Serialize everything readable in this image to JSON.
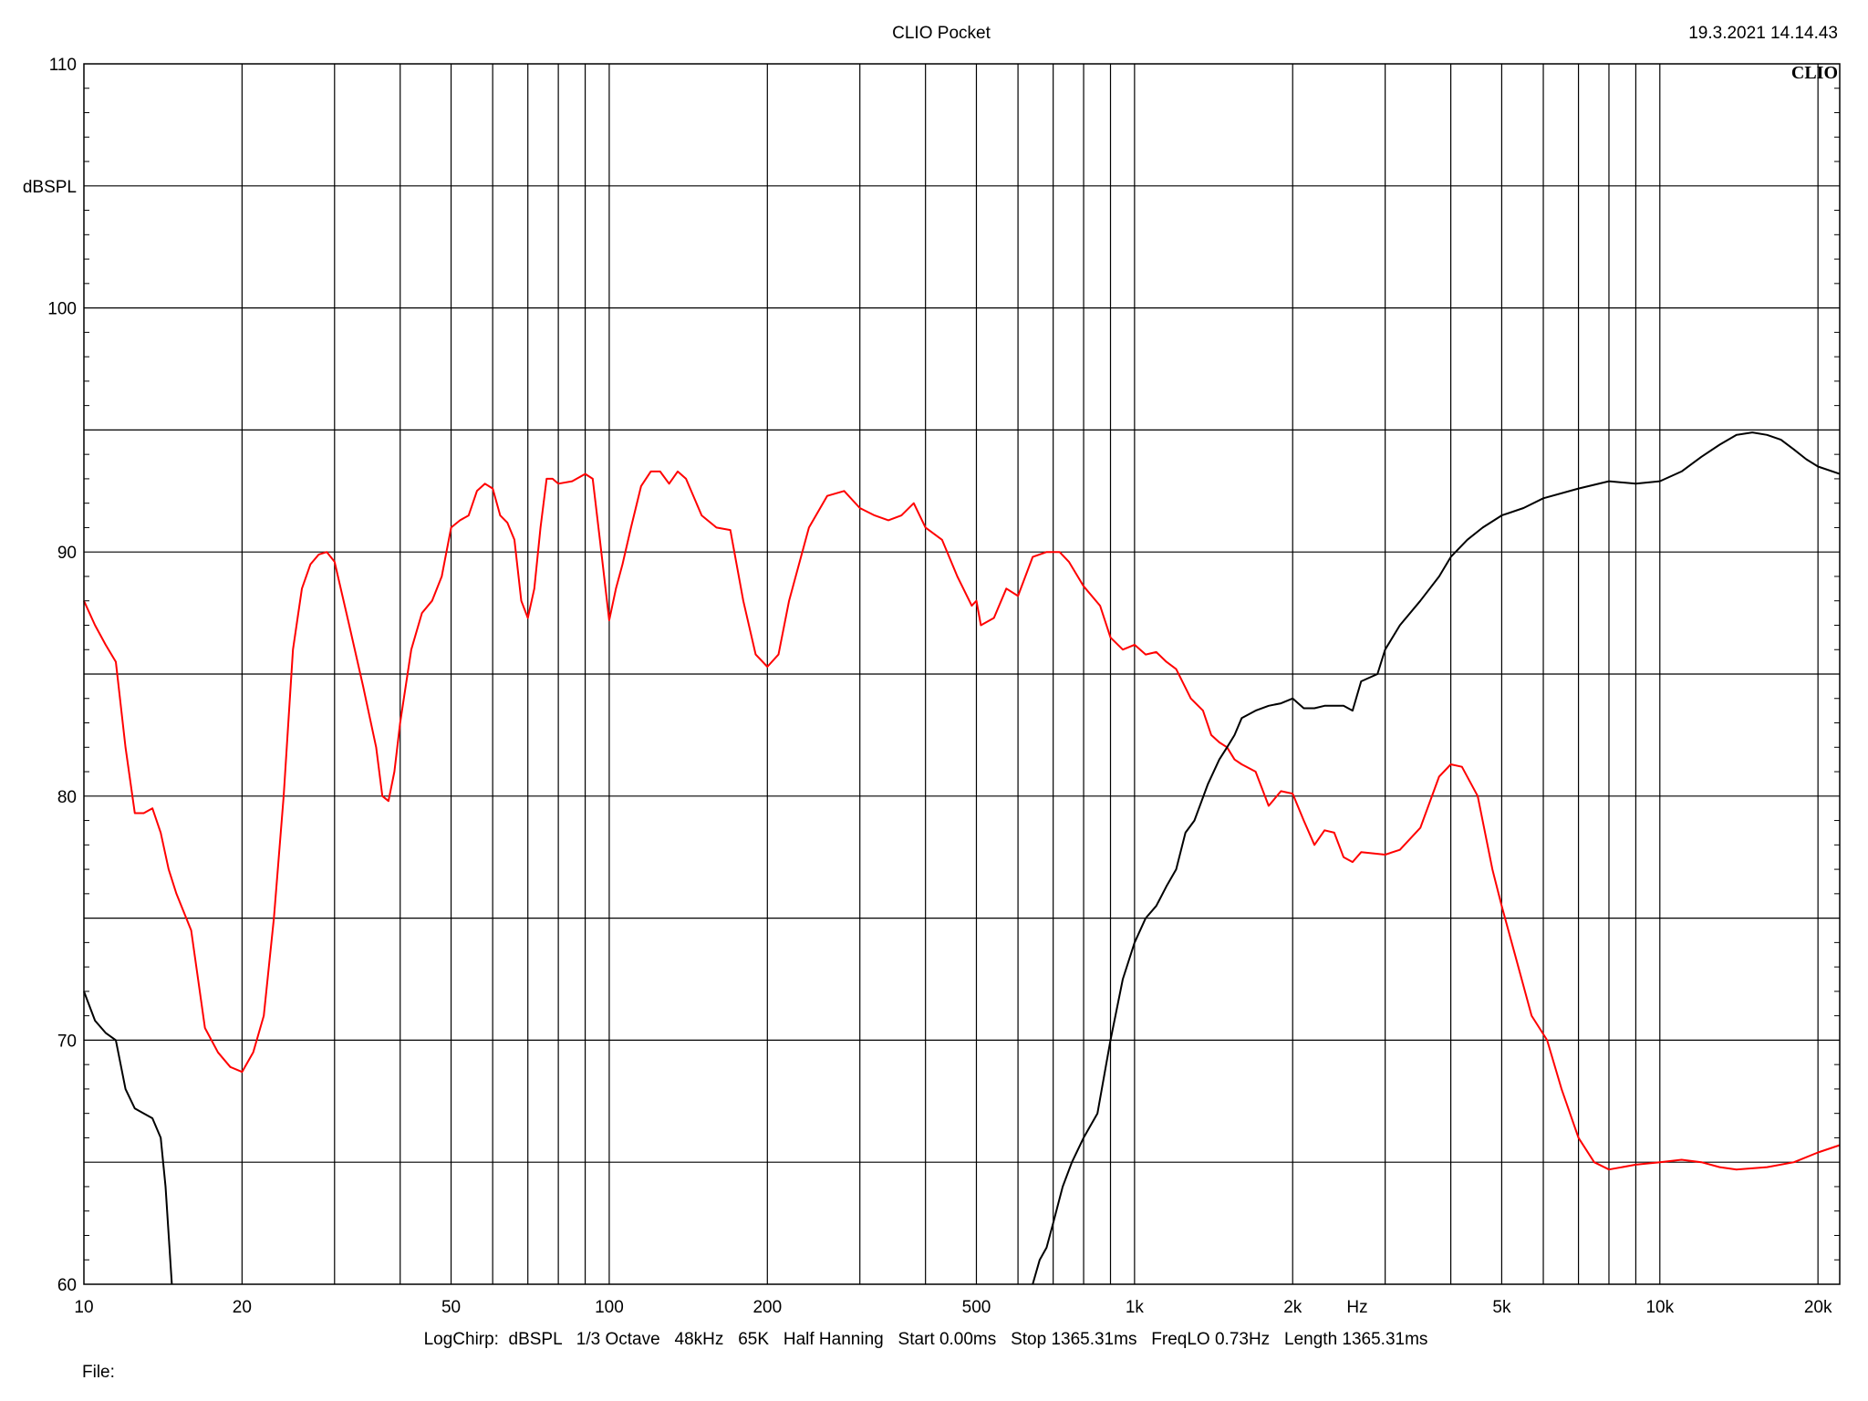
{
  "header": {
    "app_title": "CLIO Pocket",
    "timestamp": "19.3.2021 14.14.43",
    "logo_text": "CLIO"
  },
  "footer": {
    "settings_line": "LogChirp:  dBSPL   1/3 Octave   48kHz   65K   Half Hanning   Start 0.00ms   Stop 1365.31ms   FreqLO 0.73Hz   Length 1365.31ms",
    "file_label": "File:"
  },
  "chart_data": {
    "type": "line",
    "title": "CLIO Pocket",
    "ylabel": "dBSPL",
    "xlabel": "Hz",
    "x_scale": "log",
    "xlim": [
      10,
      22000
    ],
    "ylim": [
      60,
      110
    ],
    "y_ticks": [
      60,
      70,
      80,
      90,
      100,
      110
    ],
    "y_tick_labels": [
      "60",
      "70",
      "80",
      "90",
      "100",
      "110"
    ],
    "x_ticks": [
      10,
      20,
      50,
      100,
      200,
      500,
      1000,
      2000,
      5000,
      10000,
      20000
    ],
    "x_tick_labels": [
      "10",
      "20",
      "50",
      "100",
      "200",
      "500",
      "1k",
      "2k",
      "5k",
      "10k",
      "20k"
    ],
    "grid": true,
    "series": [
      {
        "color": "#ff0000",
        "points": [
          [
            10,
            88
          ],
          [
            10.5,
            87
          ],
          [
            11,
            86.2
          ],
          [
            11.5,
            85.5
          ],
          [
            12,
            82
          ],
          [
            12.5,
            79.3
          ],
          [
            13,
            79.3
          ],
          [
            13.5,
            79.5
          ],
          [
            14,
            78.5
          ],
          [
            14.5,
            77
          ],
          [
            15,
            76
          ],
          [
            16,
            74.5
          ],
          [
            17,
            70.5
          ],
          [
            18,
            69.5
          ],
          [
            19,
            68.9
          ],
          [
            20,
            68.7
          ],
          [
            21,
            69.5
          ],
          [
            22,
            71
          ],
          [
            23,
            75
          ],
          [
            24,
            80
          ],
          [
            25,
            86
          ],
          [
            26,
            88.5
          ],
          [
            27,
            89.5
          ],
          [
            28,
            89.9
          ],
          [
            29,
            90
          ],
          [
            30,
            89.6
          ],
          [
            32,
            87
          ],
          [
            34,
            84.5
          ],
          [
            36,
            82
          ],
          [
            37,
            80
          ],
          [
            38,
            79.8
          ],
          [
            39,
            81
          ],
          [
            40,
            83
          ],
          [
            42,
            86
          ],
          [
            44,
            87.5
          ],
          [
            46,
            88
          ],
          [
            48,
            89
          ],
          [
            50,
            91
          ],
          [
            52,
            91.3
          ],
          [
            54,
            91.5
          ],
          [
            56,
            92.5
          ],
          [
            58,
            92.8
          ],
          [
            60,
            92.6
          ],
          [
            62,
            91.5
          ],
          [
            64,
            91.2
          ],
          [
            66,
            90.5
          ],
          [
            68,
            88
          ],
          [
            70,
            87.3
          ],
          [
            72,
            88.5
          ],
          [
            74,
            91
          ],
          [
            76,
            93
          ],
          [
            78,
            93
          ],
          [
            80,
            92.8
          ],
          [
            85,
            92.9
          ],
          [
            90,
            93.2
          ],
          [
            93,
            93
          ],
          [
            96,
            90.5
          ],
          [
            100,
            87.2
          ],
          [
            103,
            88.5
          ],
          [
            106,
            89.5
          ],
          [
            110,
            91
          ],
          [
            115,
            92.7
          ],
          [
            120,
            93.3
          ],
          [
            125,
            93.3
          ],
          [
            130,
            92.8
          ],
          [
            135,
            93.3
          ],
          [
            140,
            93
          ],
          [
            150,
            91.5
          ],
          [
            160,
            91
          ],
          [
            170,
            90.9
          ],
          [
            180,
            88
          ],
          [
            190,
            85.8
          ],
          [
            200,
            85.3
          ],
          [
            210,
            85.8
          ],
          [
            220,
            88
          ],
          [
            240,
            91
          ],
          [
            260,
            92.3
          ],
          [
            280,
            92.5
          ],
          [
            300,
            91.8
          ],
          [
            320,
            91.5
          ],
          [
            340,
            91.3
          ],
          [
            360,
            91.5
          ],
          [
            380,
            92
          ],
          [
            400,
            91
          ],
          [
            430,
            90.5
          ],
          [
            460,
            89
          ],
          [
            490,
            87.8
          ],
          [
            500,
            88
          ],
          [
            510,
            87
          ],
          [
            540,
            87.3
          ],
          [
            570,
            88.5
          ],
          [
            600,
            88.2
          ],
          [
            640,
            89.8
          ],
          [
            680,
            90
          ],
          [
            720,
            90
          ],
          [
            750,
            89.6
          ],
          [
            800,
            88.6
          ],
          [
            860,
            87.8
          ],
          [
            900,
            86.5
          ],
          [
            950,
            86
          ],
          [
            1000,
            86.2
          ],
          [
            1050,
            85.8
          ],
          [
            1100,
            85.9
          ],
          [
            1150,
            85.5
          ],
          [
            1200,
            85.2
          ],
          [
            1280,
            84
          ],
          [
            1350,
            83.5
          ],
          [
            1400,
            82.5
          ],
          [
            1450,
            82.2
          ],
          [
            1500,
            82
          ],
          [
            1550,
            81.5
          ],
          [
            1600,
            81.3
          ],
          [
            1700,
            81
          ],
          [
            1800,
            79.6
          ],
          [
            1900,
            80.2
          ],
          [
            2000,
            80.1
          ],
          [
            2100,
            79
          ],
          [
            2200,
            78
          ],
          [
            2300,
            78.6
          ],
          [
            2400,
            78.5
          ],
          [
            2500,
            77.5
          ],
          [
            2600,
            77.3
          ],
          [
            2700,
            77.7
          ],
          [
            3000,
            77.6
          ],
          [
            3200,
            77.8
          ],
          [
            3500,
            78.7
          ],
          [
            3800,
            80.8
          ],
          [
            4000,
            81.3
          ],
          [
            4200,
            81.2
          ],
          [
            4500,
            80
          ],
          [
            4800,
            77
          ],
          [
            5000,
            75.5
          ],
          [
            5300,
            73.5
          ],
          [
            5700,
            71
          ],
          [
            6100,
            70
          ],
          [
            6500,
            68
          ],
          [
            7000,
            66
          ],
          [
            7500,
            65
          ],
          [
            8000,
            64.7
          ],
          [
            9000,
            64.9
          ],
          [
            10000,
            65
          ],
          [
            11000,
            65.1
          ],
          [
            12000,
            65
          ],
          [
            13000,
            64.8
          ],
          [
            14000,
            64.7
          ],
          [
            16000,
            64.8
          ],
          [
            18000,
            65
          ],
          [
            20000,
            65.4
          ],
          [
            22000,
            65.7
          ]
        ]
      },
      {
        "color": "#000000",
        "points": [
          [
            10,
            72
          ],
          [
            10.5,
            70.8
          ],
          [
            11,
            70.3
          ],
          [
            11.5,
            70
          ],
          [
            12,
            68
          ],
          [
            12.5,
            67.2
          ],
          [
            13,
            67
          ],
          [
            13.5,
            66.8
          ],
          [
            14,
            66
          ],
          [
            14.3,
            64
          ],
          [
            14.7,
            60
          ]
        ]
      },
      {
        "color": "#000000",
        "points": [
          [
            640,
            60
          ],
          [
            660,
            61
          ],
          [
            680,
            61.5
          ],
          [
            700,
            62.5
          ],
          [
            730,
            64
          ],
          [
            760,
            65
          ],
          [
            800,
            66
          ],
          [
            850,
            67
          ],
          [
            900,
            70
          ],
          [
            950,
            72.5
          ],
          [
            1000,
            74
          ],
          [
            1050,
            75
          ],
          [
            1100,
            75.5
          ],
          [
            1150,
            76.3
          ],
          [
            1200,
            77
          ],
          [
            1250,
            78.5
          ],
          [
            1300,
            79
          ],
          [
            1380,
            80.5
          ],
          [
            1450,
            81.5
          ],
          [
            1500,
            82
          ],
          [
            1550,
            82.5
          ],
          [
            1600,
            83.2
          ],
          [
            1700,
            83.5
          ],
          [
            1800,
            83.7
          ],
          [
            1900,
            83.8
          ],
          [
            2000,
            84
          ],
          [
            2100,
            83.6
          ],
          [
            2200,
            83.6
          ],
          [
            2300,
            83.7
          ],
          [
            2500,
            83.7
          ],
          [
            2600,
            83.5
          ],
          [
            2700,
            84.7
          ],
          [
            2900,
            85
          ],
          [
            3000,
            86
          ],
          [
            3200,
            87
          ],
          [
            3500,
            88
          ],
          [
            3800,
            89
          ],
          [
            4000,
            89.8
          ],
          [
            4300,
            90.5
          ],
          [
            4600,
            91
          ],
          [
            5000,
            91.5
          ],
          [
            5500,
            91.8
          ],
          [
            6000,
            92.2
          ],
          [
            7000,
            92.6
          ],
          [
            8000,
            92.9
          ],
          [
            9000,
            92.8
          ],
          [
            10000,
            92.9
          ],
          [
            11000,
            93.3
          ],
          [
            12000,
            93.9
          ],
          [
            13000,
            94.4
          ],
          [
            14000,
            94.8
          ],
          [
            15000,
            94.9
          ],
          [
            16000,
            94.8
          ],
          [
            17000,
            94.6
          ],
          [
            18000,
            94.2
          ],
          [
            19000,
            93.8
          ],
          [
            20000,
            93.5
          ],
          [
            22000,
            93.2
          ]
        ]
      }
    ]
  }
}
